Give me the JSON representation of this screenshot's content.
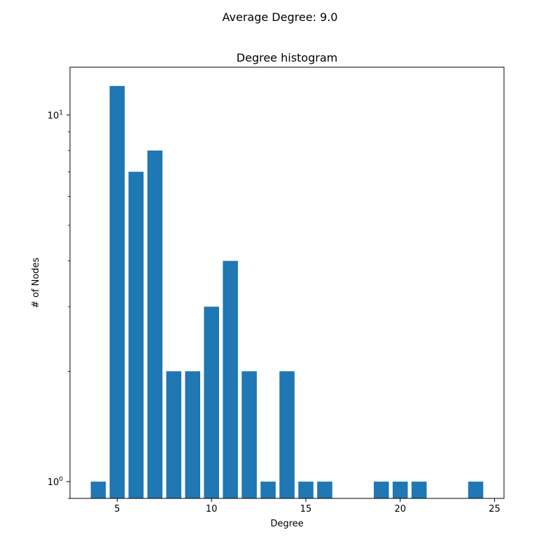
{
  "figure": {
    "suptitle": "Average Degree: 9.0"
  },
  "chart_data": {
    "type": "bar",
    "title": "Degree histogram",
    "xlabel": "Degree",
    "ylabel": "# of Nodes",
    "yscale": "log",
    "bar_color": "#1f77b4",
    "xlim": [
      2.5,
      25.5
    ],
    "ylim": [
      0.9,
      13.5
    ],
    "x": [
      4,
      5,
      6,
      7,
      8,
      9,
      10,
      11,
      12,
      13,
      14,
      15,
      16,
      19,
      20,
      21,
      24
    ],
    "values": [
      1,
      12,
      7,
      8,
      2,
      2,
      3,
      4,
      2,
      1,
      2,
      1,
      1,
      1,
      1,
      1,
      1
    ],
    "xticks": [
      {
        "value": 5,
        "label": "5"
      },
      {
        "value": 10,
        "label": "10"
      },
      {
        "value": 15,
        "label": "15"
      },
      {
        "value": 20,
        "label": "20"
      },
      {
        "value": 25,
        "label": "25"
      }
    ],
    "yticks": [
      {
        "value": 1,
        "base": "10",
        "exp": "0"
      },
      {
        "value": 10,
        "base": "10",
        "exp": "1"
      }
    ],
    "grid": false,
    "legend": false
  }
}
